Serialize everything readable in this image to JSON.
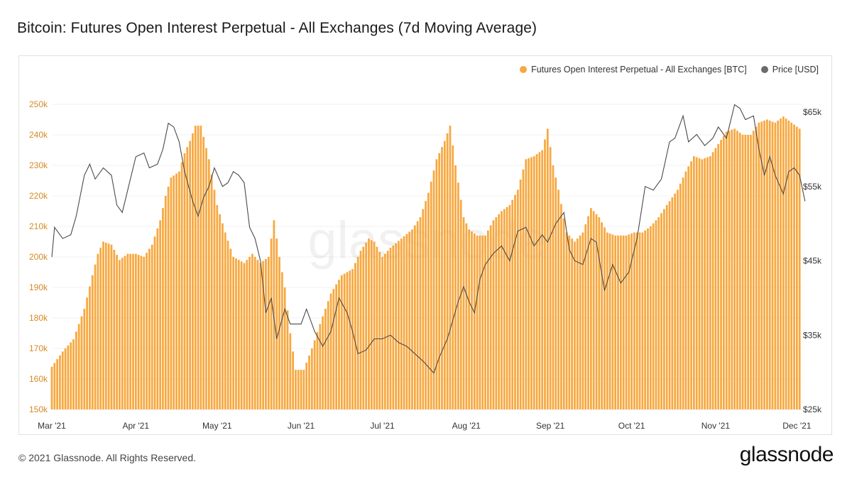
{
  "title": "Bitcoin: Futures Open Interest Perpetual - All Exchanges (7d Moving Average)",
  "footer": "© 2021 Glassnode. All Rights Reserved.",
  "brand": "glassnode",
  "watermark": "glassnode",
  "legend": {
    "series1": "Futures Open Interest Perpetual - All Exchanges [BTC]",
    "series2": "Price [USD]"
  },
  "colors": {
    "bars": "#f7a840",
    "price": "#6b6b6b",
    "left_axis_text": "#d68a23",
    "right_axis_text": "#333333"
  },
  "chart_data": {
    "type": "bar",
    "x_range": [
      "2021-03-01",
      "2021-12-03"
    ],
    "x_ticks": [
      {
        "date": "2021-03-01",
        "label": "Mar '21"
      },
      {
        "date": "2021-04-01",
        "label": "Apr '21"
      },
      {
        "date": "2021-05-01",
        "label": "May '21"
      },
      {
        "date": "2021-06-01",
        "label": "Jun '21"
      },
      {
        "date": "2021-07-01",
        "label": "Jul '21"
      },
      {
        "date": "2021-08-01",
        "label": "Aug '21"
      },
      {
        "date": "2021-09-01",
        "label": "Sep '21"
      },
      {
        "date": "2021-10-01",
        "label": "Oct '21"
      },
      {
        "date": "2021-11-01",
        "label": "Nov '21"
      },
      {
        "date": "2021-12-01",
        "label": "Dec '21"
      }
    ],
    "y_left": {
      "min": 150000,
      "max": 250000,
      "ticks": [
        "150k",
        "160k",
        "170k",
        "180k",
        "190k",
        "200k",
        "210k",
        "220k",
        "230k",
        "240k",
        "250k"
      ],
      "scale": "linear"
    },
    "y_right": {
      "min": 25000,
      "max": 65000,
      "ticks": [
        "$25k",
        "$35k",
        "$45k",
        "$55k",
        "$65k"
      ],
      "scale": "linear"
    },
    "grid": true,
    "legend_position": "top-right",
    "series": [
      {
        "name": "Futures Open Interest Perpetual - All Exchanges [BTC]",
        "type": "bar",
        "axis": "left",
        "points": [
          [
            "2021-03-01",
            164000
          ],
          [
            "2021-03-05",
            169000
          ],
          [
            "2021-03-09",
            173000
          ],
          [
            "2021-03-13",
            183000
          ],
          [
            "2021-03-16",
            194000
          ],
          [
            "2021-03-18",
            201000
          ],
          [
            "2021-03-20",
            205000
          ],
          [
            "2021-03-23",
            204000
          ],
          [
            "2021-03-26",
            199000
          ],
          [
            "2021-03-29",
            201000
          ],
          [
            "2021-04-01",
            201000
          ],
          [
            "2021-04-04",
            200000
          ],
          [
            "2021-04-07",
            204000
          ],
          [
            "2021-04-10",
            212000
          ],
          [
            "2021-04-12",
            220000
          ],
          [
            "2021-04-14",
            226000
          ],
          [
            "2021-04-17",
            228000
          ],
          [
            "2021-04-19",
            234000
          ],
          [
            "2021-04-21",
            238000
          ],
          [
            "2021-04-23",
            243000
          ],
          [
            "2021-04-25",
            243000
          ],
          [
            "2021-04-28",
            232000
          ],
          [
            "2021-05-01",
            217000
          ],
          [
            "2021-05-04",
            208000
          ],
          [
            "2021-05-07",
            200000
          ],
          [
            "2021-05-11",
            198000
          ],
          [
            "2021-05-14",
            201000
          ],
          [
            "2021-05-17",
            198000
          ],
          [
            "2021-05-20",
            200000
          ],
          [
            "2021-05-22",
            212000
          ],
          [
            "2021-05-24",
            200000
          ],
          [
            "2021-05-26",
            190000
          ],
          [
            "2021-05-28",
            175000
          ],
          [
            "2021-05-30",
            163000
          ],
          [
            "2021-06-02",
            163000
          ],
          [
            "2021-06-05",
            170000
          ],
          [
            "2021-06-08",
            178000
          ],
          [
            "2021-06-12",
            188000
          ],
          [
            "2021-06-16",
            194000
          ],
          [
            "2021-06-20",
            196000
          ],
          [
            "2021-06-23",
            202000
          ],
          [
            "2021-06-26",
            206000
          ],
          [
            "2021-06-28",
            205000
          ],
          [
            "2021-07-01",
            200000
          ],
          [
            "2021-07-04",
            203000
          ],
          [
            "2021-07-08",
            206000
          ],
          [
            "2021-07-12",
            209000
          ],
          [
            "2021-07-15",
            213000
          ],
          [
            "2021-07-18",
            221000
          ],
          [
            "2021-07-21",
            232000
          ],
          [
            "2021-07-24",
            238000
          ],
          [
            "2021-07-26",
            243000
          ],
          [
            "2021-07-28",
            230000
          ],
          [
            "2021-07-31",
            213000
          ],
          [
            "2021-08-02",
            209000
          ],
          [
            "2021-08-05",
            207000
          ],
          [
            "2021-08-08",
            207000
          ],
          [
            "2021-08-11",
            212000
          ],
          [
            "2021-08-14",
            215000
          ],
          [
            "2021-08-17",
            217000
          ],
          [
            "2021-08-20",
            222000
          ],
          [
            "2021-08-23",
            232000
          ],
          [
            "2021-08-26",
            233000
          ],
          [
            "2021-08-29",
            235000
          ],
          [
            "2021-08-31",
            242000
          ],
          [
            "2021-09-02",
            230000
          ],
          [
            "2021-09-04",
            222000
          ],
          [
            "2021-09-07",
            208000
          ],
          [
            "2021-09-10",
            205000
          ],
          [
            "2021-09-13",
            208000
          ],
          [
            "2021-09-16",
            216000
          ],
          [
            "2021-09-19",
            213000
          ],
          [
            "2021-09-22",
            208000
          ],
          [
            "2021-09-25",
            207000
          ],
          [
            "2021-09-29",
            207000
          ],
          [
            "2021-10-02",
            208000
          ],
          [
            "2021-10-05",
            208000
          ],
          [
            "2021-10-08",
            210000
          ],
          [
            "2021-10-11",
            213000
          ],
          [
            "2021-10-14",
            217000
          ],
          [
            "2021-10-18",
            222000
          ],
          [
            "2021-10-21",
            228000
          ],
          [
            "2021-10-24",
            233000
          ],
          [
            "2021-10-27",
            232000
          ],
          [
            "2021-10-30",
            233000
          ],
          [
            "2021-11-02",
            237000
          ],
          [
            "2021-11-05",
            241000
          ],
          [
            "2021-11-08",
            242000
          ],
          [
            "2021-11-11",
            240000
          ],
          [
            "2021-11-14",
            240000
          ],
          [
            "2021-11-17",
            244000
          ],
          [
            "2021-11-20",
            245000
          ],
          [
            "2021-11-23",
            244000
          ],
          [
            "2021-11-26",
            246000
          ],
          [
            "2021-11-29",
            244000
          ],
          [
            "2021-12-02",
            242000
          ]
        ]
      },
      {
        "name": "Price [USD]",
        "type": "line",
        "axis": "right",
        "points": [
          [
            "2021-03-01",
            45500
          ],
          [
            "2021-03-02",
            49500
          ],
          [
            "2021-03-05",
            48000
          ],
          [
            "2021-03-08",
            48500
          ],
          [
            "2021-03-10",
            51000
          ],
          [
            "2021-03-13",
            56500
          ],
          [
            "2021-03-15",
            58000
          ],
          [
            "2021-03-17",
            56000
          ],
          [
            "2021-03-20",
            57500
          ],
          [
            "2021-03-23",
            56500
          ],
          [
            "2021-03-25",
            52500
          ],
          [
            "2021-03-27",
            51500
          ],
          [
            "2021-03-30",
            56000
          ],
          [
            "2021-04-01",
            59000
          ],
          [
            "2021-04-04",
            59500
          ],
          [
            "2021-04-06",
            57500
          ],
          [
            "2021-04-09",
            58000
          ],
          [
            "2021-04-11",
            60000
          ],
          [
            "2021-04-13",
            63500
          ],
          [
            "2021-04-15",
            63000
          ],
          [
            "2021-04-17",
            61000
          ],
          [
            "2021-04-19",
            57000
          ],
          [
            "2021-04-22",
            53000
          ],
          [
            "2021-04-24",
            51000
          ],
          [
            "2021-04-26",
            53500
          ],
          [
            "2021-04-28",
            55000
          ],
          [
            "2021-04-30",
            57500
          ],
          [
            "2021-05-03",
            55000
          ],
          [
            "2021-05-05",
            55500
          ],
          [
            "2021-05-07",
            57000
          ],
          [
            "2021-05-09",
            56500
          ],
          [
            "2021-05-11",
            55500
          ],
          [
            "2021-05-13",
            49500
          ],
          [
            "2021-05-15",
            48000
          ],
          [
            "2021-05-17",
            45000
          ],
          [
            "2021-05-19",
            38000
          ],
          [
            "2021-05-21",
            40000
          ],
          [
            "2021-05-23",
            34500
          ],
          [
            "2021-05-26",
            38500
          ],
          [
            "2021-05-28",
            36500
          ],
          [
            "2021-06-01",
            36500
          ],
          [
            "2021-06-03",
            38500
          ],
          [
            "2021-06-06",
            35500
          ],
          [
            "2021-06-09",
            33500
          ],
          [
            "2021-06-12",
            35500
          ],
          [
            "2021-06-15",
            40000
          ],
          [
            "2021-06-18",
            38000
          ],
          [
            "2021-06-20",
            35500
          ],
          [
            "2021-06-22",
            32500
          ],
          [
            "2021-06-25",
            33000
          ],
          [
            "2021-06-28",
            34500
          ],
          [
            "2021-07-01",
            34500
          ],
          [
            "2021-07-04",
            35000
          ],
          [
            "2021-07-07",
            34000
          ],
          [
            "2021-07-10",
            33500
          ],
          [
            "2021-07-13",
            32500
          ],
          [
            "2021-07-16",
            31500
          ],
          [
            "2021-07-20",
            29900
          ],
          [
            "2021-07-22",
            32000
          ],
          [
            "2021-07-25",
            34500
          ],
          [
            "2021-07-27",
            37000
          ],
          [
            "2021-07-29",
            39500
          ],
          [
            "2021-07-31",
            41500
          ],
          [
            "2021-08-02",
            39500
          ],
          [
            "2021-08-04",
            38000
          ],
          [
            "2021-08-06",
            42500
          ],
          [
            "2021-08-08",
            44500
          ],
          [
            "2021-08-11",
            46000
          ],
          [
            "2021-08-14",
            47000
          ],
          [
            "2021-08-17",
            45000
          ],
          [
            "2021-08-20",
            49000
          ],
          [
            "2021-08-23",
            49500
          ],
          [
            "2021-08-26",
            47000
          ],
          [
            "2021-08-29",
            48500
          ],
          [
            "2021-08-31",
            47500
          ],
          [
            "2021-09-03",
            50000
          ],
          [
            "2021-09-06",
            51500
          ],
          [
            "2021-09-08",
            46500
          ],
          [
            "2021-09-10",
            45000
          ],
          [
            "2021-09-13",
            44500
          ],
          [
            "2021-09-16",
            48000
          ],
          [
            "2021-09-18",
            47500
          ],
          [
            "2021-09-21",
            41000
          ],
          [
            "2021-09-24",
            44500
          ],
          [
            "2021-09-27",
            42000
          ],
          [
            "2021-09-30",
            43500
          ],
          [
            "2021-10-03",
            48000
          ],
          [
            "2021-10-06",
            55000
          ],
          [
            "2021-10-09",
            54500
          ],
          [
            "2021-10-12",
            56000
          ],
          [
            "2021-10-15",
            61000
          ],
          [
            "2021-10-17",
            61500
          ],
          [
            "2021-10-20",
            64500
          ],
          [
            "2021-10-22",
            61000
          ],
          [
            "2021-10-25",
            62000
          ],
          [
            "2021-10-28",
            60500
          ],
          [
            "2021-10-31",
            61500
          ],
          [
            "2021-11-02",
            63000
          ],
          [
            "2021-11-05",
            61500
          ],
          [
            "2021-11-08",
            66000
          ],
          [
            "2021-11-10",
            65500
          ],
          [
            "2021-11-12",
            64000
          ],
          [
            "2021-11-15",
            64500
          ],
          [
            "2021-11-17",
            60000
          ],
          [
            "2021-11-19",
            56500
          ],
          [
            "2021-11-21",
            59000
          ],
          [
            "2021-11-23",
            56500
          ],
          [
            "2021-11-26",
            54000
          ],
          [
            "2021-11-28",
            57000
          ],
          [
            "2021-11-30",
            57500
          ],
          [
            "2021-12-02",
            56500
          ],
          [
            "2021-12-04",
            53000
          ]
        ]
      }
    ]
  }
}
